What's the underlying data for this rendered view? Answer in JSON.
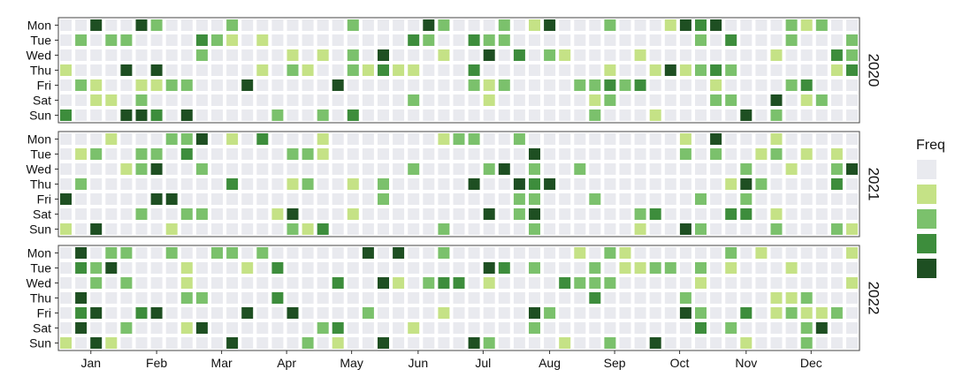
{
  "chart_data": {
    "type": "heatmap",
    "weekday_labels": [
      "Mon",
      "Tue",
      "Wed",
      "Thu",
      "Fri",
      "Sat",
      "Sun"
    ],
    "month_labels": [
      "Jan",
      "Feb",
      "Mar",
      "Apr",
      "May",
      "Jun",
      "Jul",
      "Aug",
      "Sep",
      "Oct",
      "Nov",
      "Dec"
    ],
    "legend": {
      "title": "Freq",
      "levels": [
        0,
        1,
        2,
        3,
        4
      ],
      "colors": [
        "#e9eaef",
        "#c5e286",
        "#7bc16c",
        "#3d8d3c",
        "#1e4f22"
      ]
    },
    "panels": [
      {
        "label": "2020",
        "week_count": 53,
        "values": [
          [
            0,
            0,
            4,
            0,
            0,
            4,
            2,
            0,
            0,
            0,
            0,
            2,
            0,
            0,
            0,
            0,
            0,
            0,
            0,
            2,
            0,
            0,
            0,
            0,
            4,
            2,
            0,
            0,
            0,
            2,
            0,
            1,
            4,
            0,
            0,
            0,
            2,
            0,
            0,
            0,
            1,
            4,
            3,
            4,
            0,
            0,
            0,
            0,
            2,
            1,
            2,
            0,
            0
          ],
          [
            0,
            2,
            0,
            2,
            2,
            0,
            0,
            0,
            0,
            3,
            2,
            1,
            0,
            1,
            0,
            0,
            0,
            0,
            0,
            0,
            0,
            0,
            0,
            3,
            2,
            0,
            0,
            3,
            2,
            2,
            0,
            0,
            0,
            0,
            0,
            0,
            0,
            0,
            0,
            0,
            0,
            0,
            2,
            0,
            3,
            0,
            0,
            0,
            2,
            0,
            0,
            0,
            2
          ],
          [
            0,
            0,
            0,
            0,
            0,
            0,
            0,
            0,
            0,
            2,
            0,
            0,
            0,
            0,
            0,
            1,
            0,
            1,
            0,
            2,
            0,
            4,
            0,
            0,
            0,
            1,
            0,
            0,
            4,
            0,
            3,
            0,
            2,
            1,
            0,
            0,
            0,
            0,
            1,
            0,
            0,
            0,
            0,
            0,
            0,
            0,
            0,
            1,
            0,
            0,
            0,
            3,
            2
          ],
          [
            1,
            0,
            0,
            0,
            4,
            0,
            4,
            0,
            0,
            0,
            0,
            0,
            0,
            1,
            0,
            2,
            1,
            0,
            0,
            2,
            1,
            3,
            1,
            1,
            0,
            0,
            0,
            3,
            0,
            0,
            0,
            0,
            0,
            0,
            0,
            0,
            1,
            0,
            0,
            1,
            4,
            1,
            2,
            3,
            2,
            0,
            0,
            0,
            0,
            0,
            0,
            1,
            3
          ],
          [
            0,
            2,
            1,
            0,
            0,
            1,
            1,
            2,
            2,
            0,
            0,
            0,
            4,
            0,
            0,
            0,
            0,
            0,
            4,
            0,
            0,
            0,
            0,
            0,
            0,
            0,
            0,
            2,
            1,
            2,
            0,
            0,
            0,
            0,
            2,
            2,
            3,
            2,
            3,
            0,
            0,
            0,
            0,
            1,
            0,
            0,
            0,
            0,
            2,
            3,
            0,
            0,
            0
          ],
          [
            0,
            0,
            1,
            1,
            0,
            2,
            0,
            0,
            0,
            0,
            0,
            0,
            0,
            0,
            0,
            0,
            0,
            0,
            0,
            0,
            0,
            0,
            0,
            2,
            0,
            0,
            0,
            0,
            1,
            0,
            0,
            0,
            0,
            0,
            0,
            1,
            2,
            0,
            0,
            0,
            0,
            0,
            0,
            2,
            2,
            0,
            0,
            4,
            0,
            1,
            2,
            0,
            0
          ],
          [
            3,
            0,
            0,
            0,
            4,
            4,
            3,
            0,
            4,
            0,
            0,
            0,
            0,
            0,
            2,
            0,
            0,
            2,
            0,
            3,
            0,
            0,
            0,
            0,
            0,
            0,
            0,
            0,
            0,
            0,
            0,
            0,
            0,
            0,
            0,
            2,
            0,
            0,
            0,
            1,
            0,
            0,
            0,
            0,
            0,
            4,
            0,
            2,
            0,
            0,
            0,
            0,
            0
          ]
        ]
      },
      {
        "label": "2021",
        "week_count": 53,
        "values": [
          [
            0,
            0,
            0,
            1,
            0,
            0,
            0,
            2,
            2,
            4,
            0,
            1,
            0,
            3,
            0,
            0,
            0,
            1,
            0,
            0,
            0,
            0,
            0,
            0,
            0,
            1,
            2,
            2,
            0,
            0,
            2,
            0,
            0,
            0,
            0,
            0,
            0,
            0,
            0,
            0,
            0,
            1,
            0,
            4,
            0,
            0,
            0,
            1,
            0,
            0,
            0,
            0,
            0
          ],
          [
            0,
            1,
            2,
            0,
            0,
            2,
            2,
            0,
            3,
            0,
            0,
            0,
            0,
            0,
            0,
            2,
            2,
            1,
            0,
            0,
            0,
            0,
            0,
            0,
            0,
            0,
            0,
            0,
            0,
            0,
            0,
            4,
            0,
            0,
            0,
            0,
            0,
            0,
            0,
            0,
            0,
            2,
            0,
            2,
            0,
            0,
            1,
            2,
            0,
            1,
            0,
            1,
            0
          ],
          [
            0,
            0,
            0,
            0,
            1,
            2,
            4,
            0,
            0,
            2,
            0,
            0,
            0,
            0,
            0,
            0,
            0,
            0,
            0,
            0,
            0,
            0,
            0,
            2,
            0,
            0,
            0,
            0,
            2,
            4,
            0,
            2,
            0,
            0,
            2,
            0,
            0,
            0,
            0,
            0,
            0,
            0,
            0,
            0,
            0,
            2,
            0,
            0,
            1,
            0,
            0,
            2,
            4
          ],
          [
            0,
            2,
            0,
            0,
            0,
            0,
            0,
            0,
            0,
            0,
            0,
            3,
            0,
            0,
            0,
            1,
            2,
            0,
            0,
            1,
            0,
            2,
            0,
            0,
            0,
            0,
            0,
            4,
            0,
            0,
            4,
            3,
            4,
            0,
            0,
            0,
            0,
            0,
            0,
            0,
            0,
            0,
            0,
            0,
            1,
            4,
            2,
            0,
            0,
            0,
            0,
            3,
            0
          ],
          [
            4,
            0,
            0,
            0,
            0,
            0,
            4,
            4,
            0,
            0,
            0,
            0,
            0,
            0,
            0,
            0,
            0,
            0,
            0,
            0,
            0,
            2,
            0,
            0,
            0,
            0,
            0,
            0,
            0,
            0,
            2,
            2,
            0,
            0,
            0,
            2,
            0,
            0,
            0,
            0,
            0,
            0,
            2,
            0,
            0,
            2,
            0,
            0,
            0,
            0,
            0,
            0,
            0
          ],
          [
            0,
            0,
            0,
            0,
            0,
            2,
            0,
            0,
            2,
            2,
            0,
            0,
            0,
            0,
            1,
            4,
            0,
            0,
            0,
            1,
            0,
            0,
            0,
            0,
            0,
            0,
            0,
            0,
            4,
            0,
            2,
            4,
            0,
            0,
            0,
            0,
            0,
            0,
            2,
            3,
            0,
            0,
            0,
            0,
            3,
            3,
            0,
            1,
            0,
            0,
            0,
            0,
            0
          ],
          [
            1,
            0,
            4,
            0,
            0,
            0,
            0,
            1,
            0,
            0,
            0,
            0,
            0,
            0,
            0,
            2,
            1,
            3,
            0,
            0,
            0,
            0,
            0,
            0,
            0,
            2,
            0,
            0,
            0,
            0,
            0,
            2,
            0,
            0,
            0,
            0,
            0,
            0,
            1,
            0,
            0,
            4,
            2,
            0,
            0,
            0,
            0,
            2,
            0,
            0,
            0,
            2,
            1
          ]
        ]
      },
      {
        "label": "2022",
        "week_count": 53,
        "values": [
          [
            0,
            4,
            0,
            2,
            2,
            0,
            0,
            2,
            0,
            0,
            2,
            2,
            0,
            2,
            0,
            0,
            0,
            0,
            0,
            0,
            4,
            0,
            4,
            0,
            0,
            2,
            0,
            0,
            0,
            0,
            0,
            0,
            0,
            0,
            1,
            0,
            2,
            1,
            0,
            0,
            0,
            0,
            0,
            0,
            2,
            0,
            1,
            0,
            0,
            0,
            0,
            0,
            1
          ],
          [
            0,
            3,
            2,
            4,
            0,
            0,
            0,
            0,
            1,
            0,
            0,
            0,
            1,
            0,
            3,
            0,
            0,
            0,
            0,
            0,
            0,
            0,
            0,
            0,
            0,
            0,
            0,
            0,
            4,
            3,
            0,
            2,
            0,
            0,
            0,
            2,
            0,
            1,
            1,
            2,
            2,
            0,
            2,
            0,
            1,
            0,
            0,
            0,
            1,
            0,
            0,
            0,
            0
          ],
          [
            0,
            0,
            2,
            0,
            2,
            0,
            0,
            0,
            1,
            0,
            0,
            0,
            0,
            0,
            0,
            0,
            0,
            0,
            3,
            0,
            0,
            4,
            1,
            0,
            2,
            3,
            3,
            0,
            1,
            0,
            0,
            0,
            0,
            3,
            2,
            2,
            2,
            0,
            0,
            0,
            0,
            0,
            1,
            0,
            0,
            0,
            0,
            0,
            0,
            0,
            0,
            0,
            1
          ],
          [
            0,
            4,
            0,
            0,
            0,
            0,
            0,
            0,
            2,
            2,
            0,
            0,
            0,
            0,
            3,
            0,
            0,
            0,
            0,
            0,
            0,
            0,
            0,
            0,
            0,
            0,
            0,
            0,
            0,
            0,
            0,
            0,
            0,
            0,
            0,
            3,
            0,
            0,
            0,
            0,
            0,
            2,
            0,
            0,
            0,
            0,
            0,
            1,
            1,
            2,
            0,
            0,
            0
          ],
          [
            0,
            3,
            4,
            0,
            0,
            3,
            4,
            0,
            0,
            0,
            0,
            0,
            4,
            0,
            0,
            4,
            0,
            0,
            0,
            0,
            2,
            0,
            0,
            0,
            0,
            1,
            0,
            0,
            0,
            0,
            0,
            4,
            2,
            0,
            0,
            0,
            0,
            0,
            0,
            0,
            0,
            4,
            2,
            0,
            0,
            3,
            0,
            1,
            2,
            1,
            1,
            2,
            0
          ],
          [
            0,
            4,
            0,
            0,
            2,
            0,
            0,
            0,
            1,
            4,
            0,
            0,
            0,
            0,
            0,
            0,
            0,
            2,
            3,
            0,
            0,
            0,
            0,
            1,
            0,
            0,
            0,
            0,
            0,
            0,
            0,
            2,
            0,
            0,
            0,
            0,
            0,
            0,
            0,
            0,
            0,
            0,
            3,
            0,
            2,
            0,
            0,
            0,
            0,
            2,
            4,
            0,
            0
          ],
          [
            1,
            0,
            4,
            1,
            0,
            0,
            0,
            0,
            0,
            0,
            0,
            4,
            0,
            0,
            0,
            0,
            2,
            0,
            1,
            0,
            0,
            4,
            0,
            0,
            0,
            0,
            0,
            4,
            2,
            0,
            0,
            0,
            0,
            1,
            0,
            0,
            2,
            0,
            0,
            4,
            0,
            0,
            0,
            0,
            0,
            1,
            0,
            0,
            0,
            2,
            0,
            0,
            0
          ]
        ]
      }
    ]
  }
}
